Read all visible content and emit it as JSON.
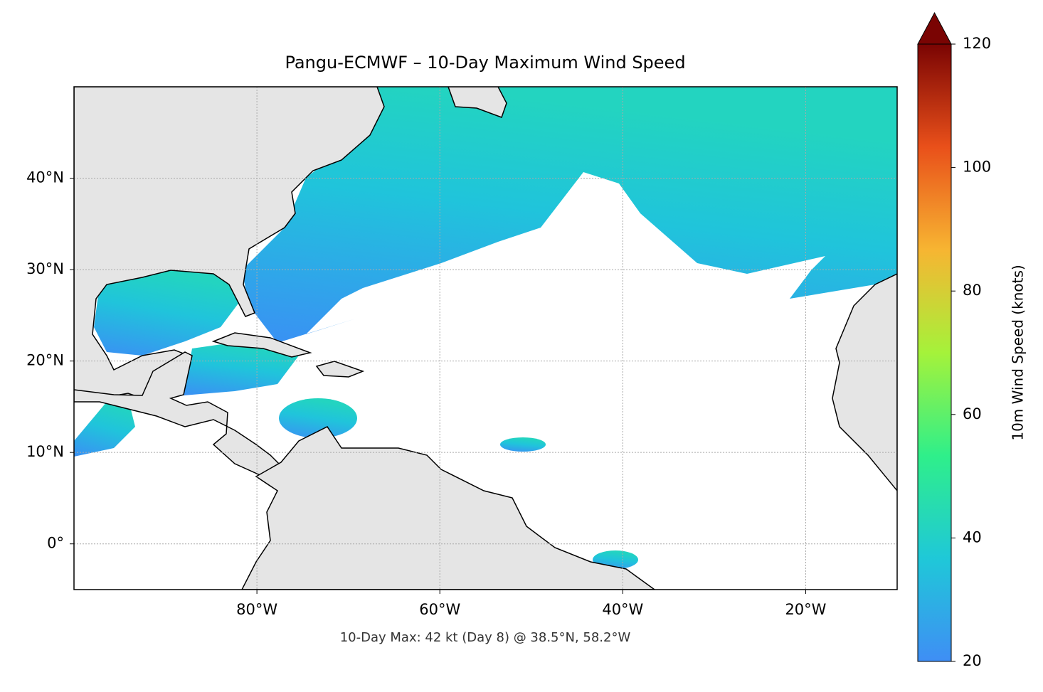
{
  "chart_data": {
    "type": "map",
    "title": "Pangu-ECMWF – 10-Day Maximum Wind Speed",
    "annotation": "10-Day Max: 42 kt (Day 8) @ 38.5°N, 58.2°W",
    "xlim": [
      -100,
      -10
    ],
    "ylim": [
      -5,
      50
    ],
    "xticks": [
      {
        "value": -80,
        "label": "80°W"
      },
      {
        "value": -60,
        "label": "60°W"
      },
      {
        "value": -40,
        "label": "40°W"
      },
      {
        "value": -20,
        "label": "20°W"
      }
    ],
    "yticks": [
      {
        "value": 0,
        "label": "0°"
      },
      {
        "value": 10,
        "label": "10°N"
      },
      {
        "value": 20,
        "label": "20°N"
      },
      {
        "value": 30,
        "label": "30°N"
      },
      {
        "value": 40,
        "label": "40°N"
      }
    ],
    "grid": true,
    "colorbar": {
      "label": "10m Wind Speed (knots)",
      "lim": [
        20,
        120
      ],
      "ticks": [
        20,
        40,
        60,
        80,
        100,
        120
      ],
      "extend": "max",
      "colors": [
        "#3f8ef5",
        "#1fc8d8",
        "#2fef8a",
        "#a5f23a",
        "#f7b532",
        "#e9501a",
        "#7a0403"
      ]
    }
  }
}
